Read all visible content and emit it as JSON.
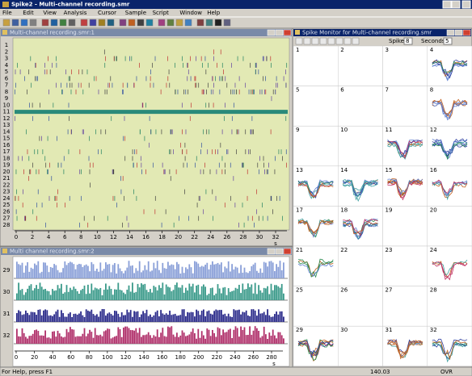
{
  "title_bar": "Spike2 - Multi-channel recording.smr",
  "menu": [
    "File",
    "Edit",
    "View",
    "Analysis",
    "Cursor",
    "Sample",
    "Script",
    "Window",
    "Help"
  ],
  "windows": {
    "time_view": {
      "title": "Multi-channel recording.smr:1",
      "channels": [
        1,
        2,
        3,
        4,
        5,
        6,
        7,
        8,
        9,
        10,
        11,
        12,
        13,
        14,
        15,
        16,
        17,
        18,
        19,
        20,
        21,
        22,
        23,
        24,
        25,
        26,
        27,
        28
      ],
      "x_ticks": [
        0,
        2,
        4,
        6,
        8,
        10,
        12,
        14,
        16,
        18,
        20,
        22,
        24,
        26,
        28,
        30,
        32
      ],
      "x_unit": "s"
    },
    "histogram_view": {
      "title": "Multi channel recording.smr:2",
      "channels": [
        29,
        30,
        31,
        32
      ],
      "x_ticks": [
        0,
        20,
        40,
        60,
        80,
        100,
        120,
        140,
        160,
        180,
        200,
        220,
        240,
        260,
        280
      ],
      "x_unit": "s"
    },
    "spike_monitor": {
      "title": "Spike Monitor for Multi-channel recording.smr",
      "spikes_label": "Spikes",
      "spikes": 8,
      "seconds_label": "Seconds",
      "seconds": 5,
      "panels": [
        1,
        2,
        3,
        4,
        5,
        6,
        7,
        8,
        9,
        10,
        11,
        12,
        13,
        14,
        15,
        16,
        17,
        18,
        19,
        20,
        21,
        22,
        23,
        24,
        25,
        26,
        27,
        28,
        29,
        30,
        31,
        32
      ]
    }
  },
  "status": {
    "help": "For Help, press F1",
    "time": "140.03",
    "mode": "OVR"
  }
}
